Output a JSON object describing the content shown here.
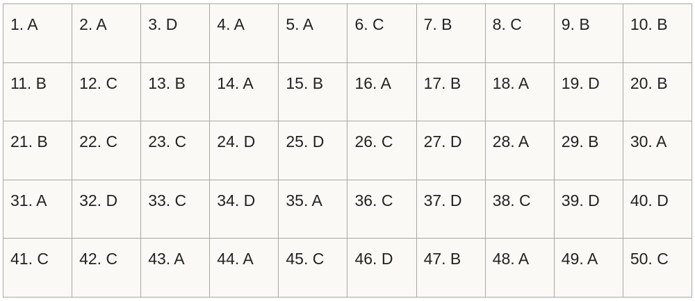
{
  "table": {
    "rows": [
      [
        "1. A",
        "2. A",
        "3. D",
        "4. A",
        "5. A",
        "6. C",
        "7. B",
        "8. C",
        "9. B",
        "10. B"
      ],
      [
        "11. B",
        "12. C",
        "13. B",
        "14. A",
        "15. B",
        "16. A",
        "17. B",
        "18. A",
        "19. D",
        "20. B"
      ],
      [
        "21. B",
        "22. C",
        "23. C",
        "24. D",
        "25. D",
        "26. C",
        "27. D",
        "28. A",
        "29. B",
        "30. A"
      ],
      [
        "31. A",
        "32. D",
        "33. C",
        "34. D",
        "35. A",
        "36. C",
        "37. D",
        "38. C",
        "39. D",
        "40. D"
      ],
      [
        "41. C",
        "42. C",
        "43. A",
        "44. A",
        "45. C",
        "46. D",
        "47. B",
        "48. A",
        "49. A",
        "50. C"
      ]
    ]
  }
}
